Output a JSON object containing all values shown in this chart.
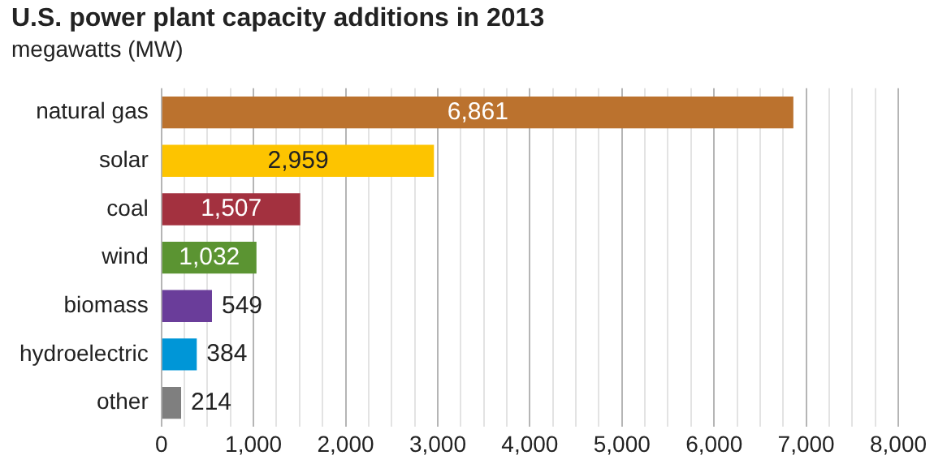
{
  "chart_data": {
    "type": "bar",
    "orientation": "horizontal",
    "title": "U.S. power plant capacity additions in 2013",
    "subtitle": "megawatts (MW)",
    "categories": [
      "natural gas",
      "solar",
      "coal",
      "wind",
      "biomass",
      "hydroelectric",
      "other"
    ],
    "values": [
      6861,
      2959,
      1507,
      1032,
      549,
      384,
      214
    ],
    "colors": [
      "#bb722e",
      "#fdc400",
      "#a3313f",
      "#5b9432",
      "#6a3d9a",
      "#0096d7",
      "#7f7f7f"
    ],
    "value_labels": [
      "6,861",
      "2,959",
      "1,507",
      "1,032",
      "549",
      "384",
      "214"
    ],
    "xlim": [
      0,
      8000
    ],
    "xticks": [
      0,
      {
        "value": 250,
        "label": null
      },
      {
        "value": 500,
        "label": null
      },
      {
        "value": 750,
        "label": null
      },
      {
        "value": 1000,
        "label": "1,000"
      },
      {
        "value": 1250,
        "label": null
      },
      {
        "value": 1500,
        "label": null
      },
      {
        "value": 1750,
        "label": null
      },
      {
        "value": 2000,
        "label": "2,000"
      },
      {
        "value": 2250,
        "label": null
      },
      {
        "value": 2500,
        "label": null
      },
      {
        "value": 2750,
        "label": null
      },
      {
        "value": 3000,
        "label": "3,000"
      },
      {
        "value": 3250,
        "label": null
      },
      {
        "value": 3500,
        "label": null
      },
      {
        "value": 3750,
        "label": null
      },
      {
        "value": 4000,
        "label": "4,000"
      },
      {
        "value": 4250,
        "label": null
      },
      {
        "value": 4500,
        "label": null
      },
      {
        "value": 4750,
        "label": null
      },
      {
        "value": 5000,
        "label": "5,000"
      },
      {
        "value": 5250,
        "label": null
      },
      {
        "value": 5500,
        "label": null
      },
      {
        "value": 5750,
        "label": null
      },
      {
        "value": 6000,
        "label": "6,000"
      },
      {
        "value": 6250,
        "label": null
      },
      {
        "value": 6500,
        "label": null
      },
      {
        "value": 6750,
        "label": null
      },
      {
        "value": 7000,
        "label": "7,000"
      },
      {
        "value": 7250,
        "label": null
      },
      {
        "value": 7500,
        "label": null
      },
      {
        "value": 7750,
        "label": null
      },
      {
        "value": 8000,
        "label": "8,000"
      }
    ],
    "grid": "x",
    "legend": false
  }
}
